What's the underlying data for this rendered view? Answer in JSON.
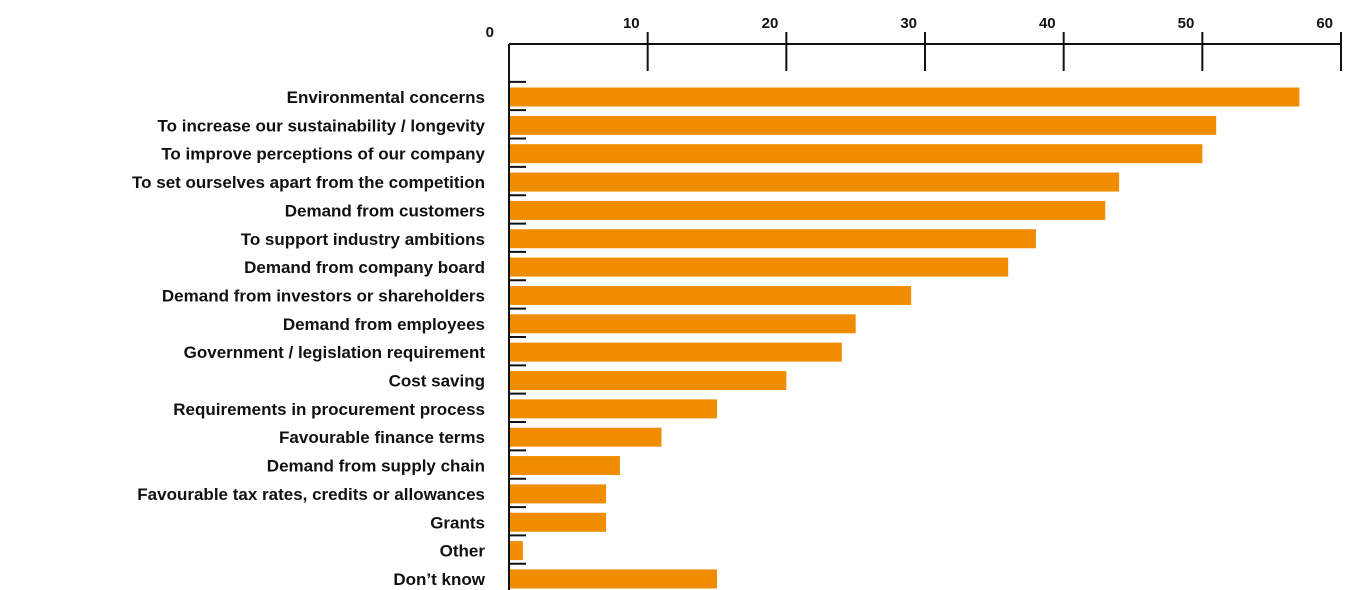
{
  "chart_data": {
    "type": "bar",
    "orientation": "horizontal",
    "title": "",
    "xlabel": "",
    "ylabel": "",
    "xlim": [
      0,
      60
    ],
    "x_ticks": [
      0,
      10,
      20,
      30,
      40,
      50,
      60
    ],
    "x_axis_position": "top",
    "grid": false,
    "legend": "none",
    "bar_color": "#F08C00",
    "categories": [
      "Environmental concerns",
      "To increase our sustainability / longevity",
      "To improve perceptions of our company",
      "To set ourselves apart from the competition",
      "Demand from customers",
      "To support industry ambitions",
      "Demand from company board",
      "Demand from investors or shareholders",
      "Demand from employees",
      "Government / legislation requirement",
      "Cost saving",
      "Requirements in procurement process",
      "Favourable finance terms",
      "Demand from supply chain",
      "Favourable tax rates, credits or allowances",
      "Grants",
      "Other",
      "Don’t know"
    ],
    "values": [
      57,
      51,
      50,
      44,
      43,
      38,
      36,
      29,
      25,
      24,
      20,
      15,
      11,
      8,
      7,
      7,
      1,
      15
    ]
  }
}
